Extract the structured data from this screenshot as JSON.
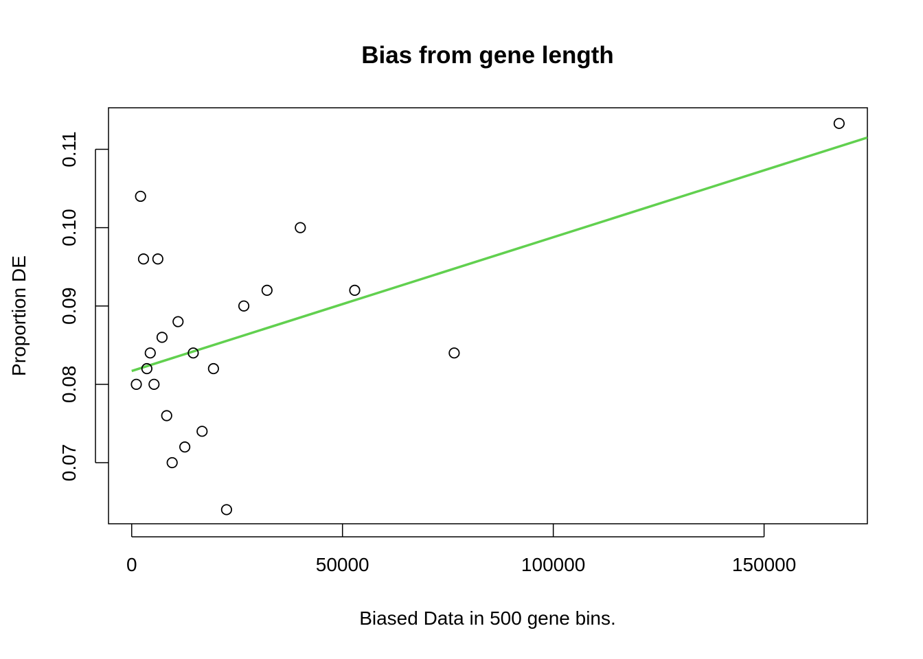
{
  "chart_data": {
    "type": "scatter",
    "title": "Bias from gene length",
    "xlabel": "Biased Data in 500 gene bins.",
    "ylabel": "Proportion DE",
    "xlim": [
      -5500,
      174500
    ],
    "ylim": [
      0.0622,
      0.1153
    ],
    "x_ticks": [
      0,
      50000,
      100000,
      150000
    ],
    "x_tick_labels": [
      "0",
      "50000",
      "100000",
      "150000"
    ],
    "y_ticks": [
      0.07,
      0.08,
      0.09,
      0.1,
      0.11
    ],
    "y_tick_labels": [
      "0.07",
      "0.08",
      "0.09",
      "0.10",
      "0.11"
    ],
    "grid": false,
    "legend": "none",
    "points": [
      {
        "x": 1100,
        "y": 0.08
      },
      {
        "x": 2100,
        "y": 0.104
      },
      {
        "x": 2800,
        "y": 0.096
      },
      {
        "x": 3600,
        "y": 0.082
      },
      {
        "x": 4400,
        "y": 0.084
      },
      {
        "x": 5300,
        "y": 0.08
      },
      {
        "x": 6200,
        "y": 0.096
      },
      {
        "x": 7200,
        "y": 0.086
      },
      {
        "x": 8300,
        "y": 0.076
      },
      {
        "x": 9600,
        "y": 0.07
      },
      {
        "x": 11000,
        "y": 0.088
      },
      {
        "x": 12600,
        "y": 0.072
      },
      {
        "x": 14600,
        "y": 0.084
      },
      {
        "x": 16700,
        "y": 0.074
      },
      {
        "x": 19400,
        "y": 0.082
      },
      {
        "x": 22500,
        "y": 0.064
      },
      {
        "x": 26600,
        "y": 0.09
      },
      {
        "x": 32100,
        "y": 0.092
      },
      {
        "x": 40000,
        "y": 0.1
      },
      {
        "x": 52900,
        "y": 0.092
      },
      {
        "x": 76500,
        "y": 0.084
      },
      {
        "x": 167800,
        "y": 0.1133
      }
    ],
    "fit_line": {
      "x": [
        0,
        174500
      ],
      "y": [
        0.0817,
        0.1115
      ],
      "color": "#61D04F"
    },
    "point_color": "#000000"
  }
}
